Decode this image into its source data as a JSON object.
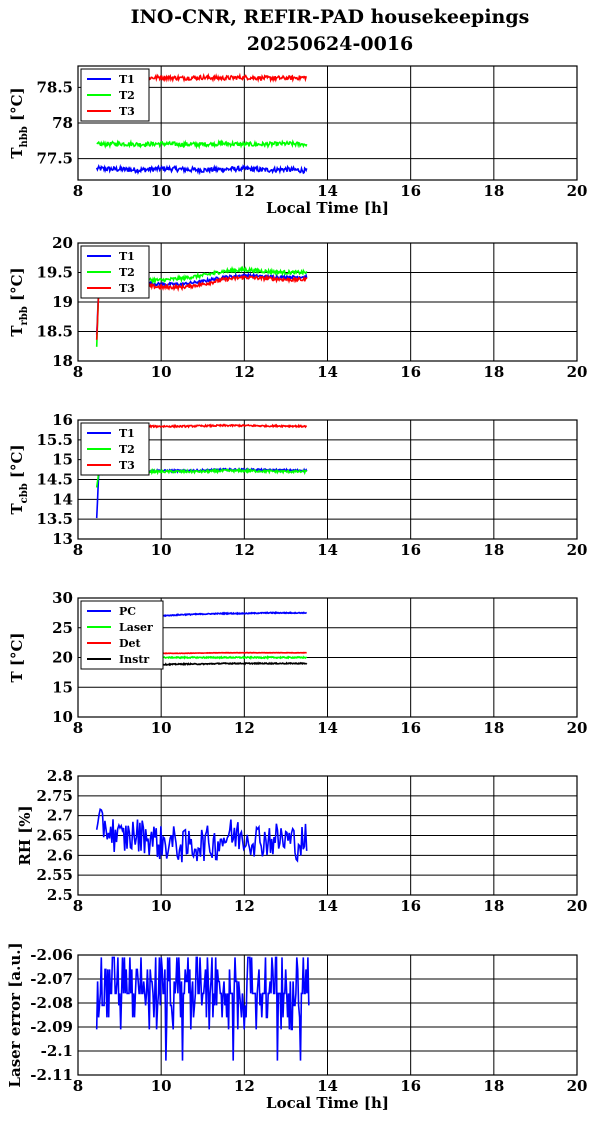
{
  "figure": {
    "title_line1": "INO-CNR, REFIR-PAD housekeepings",
    "title_line2": "20250624-0016"
  },
  "chart_data": [
    {
      "type": "line",
      "ylabel_main": "T",
      "ylabel_sub": "hbb",
      "ylabel_unit": "[°C]",
      "xlabel": "Local Time [h]",
      "xlim": [
        8,
        20
      ],
      "ylim": [
        77.2,
        78.8
      ],
      "xticks": [
        8,
        10,
        12,
        14,
        16,
        18,
        20
      ],
      "yticks": [
        77.5,
        78,
        78.5
      ],
      "ytick_labels": [
        "77.5",
        "78",
        "78.5"
      ],
      "grid": true,
      "legend_position": "top-left",
      "series": [
        {
          "name": "T1",
          "color": "#0000ff",
          "x": [
            8.45,
            9.0,
            9.5,
            10.0,
            10.5,
            11.0,
            11.5,
            12.0,
            12.5,
            13.0,
            13.5
          ],
          "y": [
            77.36,
            77.35,
            77.34,
            77.36,
            77.35,
            77.34,
            77.35,
            77.36,
            77.34,
            77.35,
            77.33
          ],
          "noise": 0.035
        },
        {
          "name": "T2",
          "color": "#00ff00",
          "x": [
            8.45,
            9.0,
            9.5,
            10.0,
            10.5,
            11.0,
            11.5,
            12.0,
            12.5,
            13.0,
            13.5
          ],
          "y": [
            77.7,
            77.71,
            77.7,
            77.71,
            77.7,
            77.7,
            77.71,
            77.7,
            77.7,
            77.71,
            77.7
          ],
          "noise": 0.03
        },
        {
          "name": "T3",
          "color": "#ff0000",
          "x": [
            8.45,
            9.0,
            9.5,
            10.0,
            10.5,
            11.0,
            11.5,
            12.0,
            12.5,
            13.0,
            13.5
          ],
          "y": [
            78.63,
            78.64,
            78.63,
            78.64,
            78.63,
            78.64,
            78.63,
            78.64,
            78.63,
            78.63,
            78.64
          ],
          "noise": 0.03
        }
      ]
    },
    {
      "type": "line",
      "ylabel_main": "T",
      "ylabel_sub": "rbb",
      "ylabel_unit": "[°C]",
      "xlabel": "",
      "xlim": [
        8,
        20
      ],
      "ylim": [
        18,
        20
      ],
      "xticks": [
        8,
        10,
        12,
        14,
        16,
        18,
        20
      ],
      "yticks": [
        18,
        18.5,
        19,
        19.5,
        20
      ],
      "ytick_labels": [
        "18",
        "18.5",
        "19",
        "19.5",
        "20"
      ],
      "grid": true,
      "legend_position": "top-left",
      "series": [
        {
          "name": "T1",
          "color": "#0000ff",
          "x": [
            8.45,
            8.5,
            9.0,
            9.5,
            10.0,
            10.5,
            11.0,
            11.5,
            12.0,
            12.5,
            13.0,
            13.5
          ],
          "y": [
            18.45,
            19.25,
            19.3,
            19.32,
            19.3,
            19.3,
            19.35,
            19.42,
            19.45,
            19.43,
            19.42,
            19.43
          ],
          "noise": 0.025
        },
        {
          "name": "T2",
          "color": "#00ff00",
          "x": [
            8.45,
            8.5,
            9.0,
            9.5,
            10.0,
            10.5,
            11.0,
            11.5,
            12.0,
            12.5,
            13.0,
            13.5
          ],
          "y": [
            18.22,
            19.3,
            19.35,
            19.38,
            19.37,
            19.4,
            19.45,
            19.52,
            19.55,
            19.52,
            19.5,
            19.5
          ],
          "noise": 0.03
        },
        {
          "name": "T3",
          "color": "#ff0000",
          "x": [
            8.45,
            8.5,
            9.0,
            9.5,
            10.0,
            10.5,
            11.0,
            11.5,
            12.0,
            12.5,
            13.0,
            13.5
          ],
          "y": [
            18.35,
            19.2,
            19.25,
            19.28,
            19.25,
            19.25,
            19.3,
            19.38,
            19.42,
            19.4,
            19.38,
            19.38
          ],
          "noise": 0.03
        }
      ]
    },
    {
      "type": "line",
      "ylabel_main": "T",
      "ylabel_sub": "cbb",
      "ylabel_unit": "[°C]",
      "xlabel": "",
      "xlim": [
        8,
        20
      ],
      "ylim": [
        13,
        16
      ],
      "xticks": [
        8,
        10,
        12,
        14,
        16,
        18,
        20
      ],
      "yticks": [
        13,
        13.5,
        14,
        14.5,
        15,
        15.5,
        16
      ],
      "ytick_labels": [
        "13",
        "13.5",
        "14",
        "14.5",
        "15",
        "15.5",
        "16"
      ],
      "grid": true,
      "legend_position": "top-left",
      "series": [
        {
          "name": "T1",
          "color": "#0000ff",
          "x": [
            8.45,
            8.5,
            9.0,
            9.5,
            10.0,
            10.5,
            11.0,
            11.5,
            12.0,
            12.5,
            13.0,
            13.5
          ],
          "y": [
            13.55,
            14.7,
            14.72,
            14.73,
            14.72,
            14.72,
            14.73,
            14.75,
            14.75,
            14.74,
            14.73,
            14.73
          ],
          "noise": 0.025
        },
        {
          "name": "T2",
          "color": "#00ff00",
          "x": [
            8.45,
            8.5,
            9.0,
            9.5,
            10.0,
            10.5,
            11.0,
            11.5,
            12.0,
            12.5,
            13.0,
            13.5
          ],
          "y": [
            14.3,
            14.68,
            14.7,
            14.7,
            14.7,
            14.7,
            14.7,
            14.72,
            14.72,
            14.71,
            14.7,
            14.7
          ],
          "noise": 0.03
        },
        {
          "name": "T3",
          "color": "#ff0000",
          "x": [
            8.45,
            8.5,
            9.0,
            9.5,
            10.0,
            10.5,
            11.0,
            11.5,
            12.0,
            12.5,
            13.0,
            13.5
          ],
          "y": [
            15.82,
            15.83,
            15.84,
            15.84,
            15.84,
            15.84,
            15.85,
            15.86,
            15.86,
            15.85,
            15.85,
            15.84
          ],
          "noise": 0.02
        }
      ]
    },
    {
      "type": "line",
      "ylabel_main": "T [°C]",
      "ylabel_sub": "",
      "ylabel_unit": "",
      "xlabel": "",
      "xlim": [
        8,
        20
      ],
      "ylim": [
        10,
        30
      ],
      "xticks": [
        8,
        10,
        12,
        14,
        16,
        18,
        20
      ],
      "yticks": [
        10,
        15,
        20,
        25,
        30
      ],
      "ytick_labels": [
        "10",
        "15",
        "20",
        "25",
        "30"
      ],
      "grid": true,
      "legend_position": "top-left",
      "series": [
        {
          "name": "PC",
          "color": "#0000ff",
          "x": [
            9.8,
            10.0,
            10.5,
            11.0,
            11.5,
            12.0,
            12.5,
            13.0,
            13.5
          ],
          "y": [
            26.8,
            27.0,
            27.2,
            27.3,
            27.4,
            27.4,
            27.5,
            27.5,
            27.5
          ],
          "noise": 0.08
        },
        {
          "name": "Laser",
          "color": "#00ff00",
          "x": [
            9.8,
            10.0,
            10.5,
            11.0,
            11.5,
            12.0,
            12.5,
            13.0,
            13.5
          ],
          "y": [
            19.9,
            20.0,
            20.0,
            20.0,
            20.0,
            20.0,
            20.0,
            20.0,
            20.0
          ],
          "noise": 0.1
        },
        {
          "name": "Det",
          "color": "#ff0000",
          "x": [
            9.8,
            10.0,
            10.5,
            11.0,
            11.5,
            12.0,
            12.5,
            13.0,
            13.5
          ],
          "y": [
            20.7,
            20.7,
            20.7,
            20.75,
            20.8,
            20.8,
            20.8,
            20.8,
            20.8
          ],
          "noise": 0.03
        },
        {
          "name": "Instr",
          "color": "#000000",
          "x": [
            9.8,
            10.0,
            10.5,
            11.0,
            11.5,
            12.0,
            12.5,
            13.0,
            13.5
          ],
          "y": [
            18.8,
            18.8,
            18.9,
            18.9,
            19.0,
            19.0,
            19.0,
            19.0,
            19.0
          ],
          "noise": 0.08
        }
      ]
    },
    {
      "type": "line",
      "ylabel_main": "RH [%]",
      "ylabel_sub": "",
      "ylabel_unit": "",
      "xlabel": "",
      "xlim": [
        8,
        20
      ],
      "ylim": [
        2.5,
        2.8
      ],
      "xticks": [
        8,
        10,
        12,
        14,
        16,
        18,
        20
      ],
      "yticks": [
        2.5,
        2.55,
        2.6,
        2.65,
        2.7,
        2.75,
        2.8
      ],
      "ytick_labels": [
        "2.5",
        "2.55",
        "2.6",
        "2.65",
        "2.7",
        "2.75",
        "2.8"
      ],
      "grid": true,
      "legend_position": "none",
      "series": [
        {
          "name": "",
          "color": "#0000ff",
          "x": [
            8.45,
            8.6,
            8.8,
            9.0,
            9.3,
            9.6,
            10.0,
            10.3,
            10.6,
            11.0,
            11.3,
            11.6,
            12.0,
            12.3,
            12.6,
            13.0,
            13.3,
            13.5
          ],
          "y": [
            2.66,
            2.68,
            2.66,
            2.64,
            2.65,
            2.65,
            2.63,
            2.63,
            2.62,
            2.63,
            2.63,
            2.65,
            2.65,
            2.64,
            2.64,
            2.64,
            2.63,
            2.64
          ],
          "noise": 0.045
        }
      ]
    },
    {
      "type": "line",
      "ylabel_main": "Laser error [a.u.]",
      "ylabel_sub": "",
      "ylabel_unit": "",
      "xlabel": "Local Time [h]",
      "xlim": [
        8,
        20
      ],
      "ylim": [
        -2.11,
        -2.06
      ],
      "xticks": [
        8,
        10,
        12,
        14,
        16,
        18,
        20
      ],
      "yticks": [
        -2.11,
        -2.1,
        -2.09,
        -2.08,
        -2.07,
        -2.06
      ],
      "ytick_labels": [
        "-2.11",
        "-2.1",
        "-2.09",
        "-2.08",
        "-2.07",
        "-2.06"
      ],
      "grid": true,
      "legend_position": "none",
      "series": [
        {
          "name": "",
          "color": "#0000ff",
          "x": [
            8.45,
            13.55
          ],
          "y": [
            -2.075,
            -2.075
          ],
          "levels": [
            -2.061,
            -2.066,
            -2.071,
            -2.076,
            -2.081,
            -2.086,
            -2.091,
            -2.104
          ],
          "level_weights": [
            0.16,
            0.1,
            0.14,
            0.3,
            0.12,
            0.08,
            0.07,
            0.03
          ]
        }
      ]
    }
  ]
}
